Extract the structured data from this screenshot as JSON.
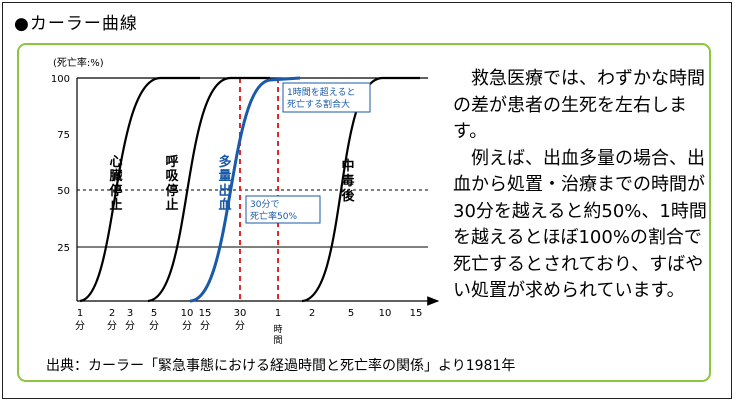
{
  "title": "●カーラー曲線",
  "chart": {
    "y_unit": "(死亡率:%)",
    "y_ticks": [
      "100",
      "75",
      "50",
      "25"
    ],
    "x_ticks": [
      {
        "top": "1",
        "bottom": "分"
      },
      {
        "top": "2",
        "bottom": "分"
      },
      {
        "top": "3",
        "bottom": "分"
      },
      {
        "top": "5",
        "bottom": "分"
      },
      {
        "top": "10",
        "bottom": "分"
      },
      {
        "top": "15",
        "bottom": "分"
      },
      {
        "top": "30",
        "bottom": "分"
      },
      {
        "top": "1",
        "bottom": "時間"
      },
      {
        "top": "2",
        "bottom": ""
      },
      {
        "top": "5",
        "bottom": ""
      },
      {
        "top": "10",
        "bottom": ""
      },
      {
        "top": "15",
        "bottom": ""
      }
    ],
    "curve_labels": [
      "心臓停止",
      "呼吸停止",
      "多量出血",
      "中毒後"
    ],
    "callout_top": "1時間を超えると死亡する割合大",
    "callout_mid": "30分で死亡率50%",
    "colors": {
      "accent": "#1a5aa8",
      "marker": "#e0282d",
      "panel_border": "#8cc63f"
    }
  },
  "chart_data": {
    "type": "line",
    "x_scale": "log (time)",
    "y_unit": "死亡率 (%)",
    "ylim": [
      0,
      100
    ],
    "x_ticks": [
      "1分",
      "2分",
      "3分",
      "5分",
      "10分",
      "15分",
      "30分",
      "1時間",
      "2",
      "5",
      "10",
      "15"
    ],
    "series": [
      {
        "name": "心臓停止",
        "midpoint_x": "約3分",
        "values_y": [
          0,
          50,
          100
        ]
      },
      {
        "name": "呼吸停止",
        "midpoint_x": "約10分",
        "values_y": [
          0,
          50,
          100
        ]
      },
      {
        "name": "多量出血",
        "midpoint_x": "30分",
        "values_y": [
          0,
          50,
          100
        ]
      },
      {
        "name": "中毒後",
        "midpoint_x": "約5時間",
        "values_y": [
          0,
          50,
          100
        ]
      }
    ],
    "annotations": [
      "1時間を超えると死亡する割合大",
      "30分で死亡率50%"
    ]
  },
  "description": [
    "救急医療では、わずかな時間の差が患者の生死を左右します。",
    "例えば、出血多量の場合、出血から処置・治療までの時間が30分を越えると約50%、1時間を越えるとほぼ100%の割合で死亡するとされており、すばやい処置が求められています。"
  ],
  "source": "出典：カーラー「緊急事態における経過時間と死亡率の関係」より1981年"
}
